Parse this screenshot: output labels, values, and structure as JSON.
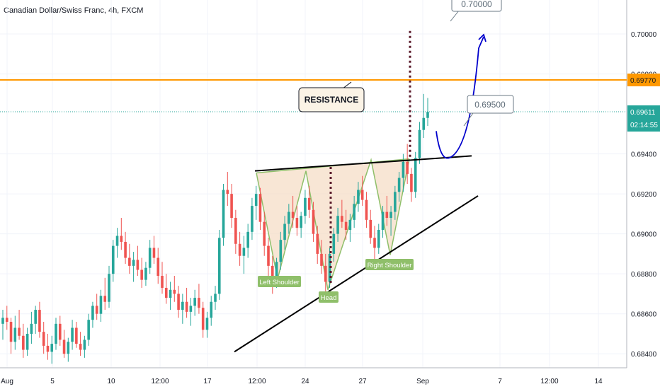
{
  "header": {
    "title": "Canadian Dollar/Swiss Franc, 4h, FXCM"
  },
  "chart_data": {
    "type": "candlestick",
    "symbol": "CADCHF",
    "timeframe": "4h",
    "y_axis": {
      "ticks": [
        "0.70000",
        "0.69800",
        "0.69400",
        "0.69200",
        "0.69000",
        "0.68800",
        "0.68600",
        "0.68400"
      ],
      "range": [
        0.6833,
        0.7017
      ]
    },
    "x_axis": {
      "ticks": [
        "Aug",
        "5",
        "10",
        "12:00",
        "17",
        "12:00",
        "24",
        "27",
        "Sep",
        "7",
        "12:00",
        "14"
      ]
    },
    "price_labels": {
      "resistance_level": "0.69770",
      "last_price": "0.69611",
      "countdown": "02:14:55"
    },
    "resistance_level": 0.6977,
    "last_price": 0.69611,
    "neckline": [
      [
        0.69315,
        0.6939
      ]
    ],
    "support_trend": [
      0.6841,
      0.6919
    ],
    "candles": [
      [
        0.6855,
        0.6862,
        0.6847,
        0.6858
      ],
      [
        0.6858,
        0.6864,
        0.6852,
        0.6856
      ],
      [
        0.6856,
        0.6858,
        0.684,
        0.6846
      ],
      [
        0.6846,
        0.6859,
        0.6842,
        0.6853
      ],
      [
        0.6853,
        0.6862,
        0.6847,
        0.6849
      ],
      [
        0.6849,
        0.6855,
        0.6838,
        0.6842
      ],
      [
        0.6842,
        0.6853,
        0.6839,
        0.685
      ],
      [
        0.685,
        0.6861,
        0.6845,
        0.6855
      ],
      [
        0.6855,
        0.6864,
        0.685,
        0.6862
      ],
      [
        0.6862,
        0.6866,
        0.6848,
        0.6851
      ],
      [
        0.6851,
        0.6856,
        0.684,
        0.6844
      ],
      [
        0.6844,
        0.685,
        0.6837,
        0.6841
      ],
      [
        0.6841,
        0.6849,
        0.6835,
        0.6845
      ],
      [
        0.6845,
        0.6858,
        0.6842,
        0.6855
      ],
      [
        0.6855,
        0.6859,
        0.6844,
        0.6847
      ],
      [
        0.6847,
        0.6852,
        0.6838,
        0.684
      ],
      [
        0.684,
        0.6848,
        0.6836,
        0.6846
      ],
      [
        0.6846,
        0.6857,
        0.6842,
        0.6853
      ],
      [
        0.6853,
        0.6856,
        0.6843,
        0.6845
      ],
      [
        0.6845,
        0.6851,
        0.6839,
        0.6842
      ],
      [
        0.6842,
        0.6849,
        0.6838,
        0.6847
      ],
      [
        0.6847,
        0.686,
        0.6844,
        0.6857
      ],
      [
        0.6857,
        0.6866,
        0.6853,
        0.6864
      ],
      [
        0.6864,
        0.687,
        0.6857,
        0.686
      ],
      [
        0.686,
        0.6872,
        0.6856,
        0.6869
      ],
      [
        0.6869,
        0.6878,
        0.6862,
        0.6866
      ],
      [
        0.6866,
        0.6884,
        0.6863,
        0.688
      ],
      [
        0.688,
        0.6897,
        0.6876,
        0.6894
      ],
      [
        0.6894,
        0.6903,
        0.6888,
        0.6899
      ],
      [
        0.6899,
        0.6908,
        0.6892,
        0.6896
      ],
      [
        0.6896,
        0.6901,
        0.6885,
        0.6888
      ],
      [
        0.6888,
        0.6895,
        0.688,
        0.6884
      ],
      [
        0.6884,
        0.6891,
        0.6876,
        0.6887
      ],
      [
        0.6887,
        0.6894,
        0.6879,
        0.6882
      ],
      [
        0.6882,
        0.6888,
        0.6873,
        0.6877
      ],
      [
        0.6877,
        0.6886,
        0.6874,
        0.6883
      ],
      [
        0.6883,
        0.6897,
        0.688,
        0.6893
      ],
      [
        0.6893,
        0.6899,
        0.6885,
        0.6888
      ],
      [
        0.6888,
        0.6893,
        0.6875,
        0.6879
      ],
      [
        0.6879,
        0.6886,
        0.687,
        0.6873
      ],
      [
        0.6873,
        0.688,
        0.6865,
        0.6868
      ],
      [
        0.6868,
        0.6876,
        0.6862,
        0.6872
      ],
      [
        0.6872,
        0.6879,
        0.6866,
        0.687
      ],
      [
        0.687,
        0.6874,
        0.6858,
        0.6862
      ],
      [
        0.6862,
        0.687,
        0.6855,
        0.6866
      ],
      [
        0.6866,
        0.6873,
        0.6858,
        0.6861
      ],
      [
        0.6861,
        0.6868,
        0.6854,
        0.6864
      ],
      [
        0.6864,
        0.6872,
        0.6859,
        0.6868
      ],
      [
        0.6868,
        0.6875,
        0.686,
        0.6863
      ],
      [
        0.6863,
        0.6866,
        0.6848,
        0.6852
      ],
      [
        0.6852,
        0.6861,
        0.6848,
        0.6858
      ],
      [
        0.6858,
        0.6869,
        0.6854,
        0.6866
      ],
      [
        0.6866,
        0.6874,
        0.6862,
        0.687
      ],
      [
        0.687,
        0.6902,
        0.6867,
        0.6898
      ],
      [
        0.6898,
        0.6925,
        0.6894,
        0.6922
      ],
      [
        0.6922,
        0.6931,
        0.6914,
        0.692
      ],
      [
        0.692,
        0.6925,
        0.6903,
        0.6908
      ],
      [
        0.6908,
        0.6912,
        0.689,
        0.6895
      ],
      [
        0.6895,
        0.6901,
        0.6884,
        0.6889
      ],
      [
        0.6889,
        0.6899,
        0.688,
        0.6893
      ],
      [
        0.6893,
        0.6905,
        0.6888,
        0.6901
      ],
      [
        0.6901,
        0.6918,
        0.6897,
        0.6914
      ],
      [
        0.6914,
        0.6924,
        0.6907,
        0.692
      ],
      [
        0.692,
        0.6923,
        0.6902,
        0.6906
      ],
      [
        0.6906,
        0.6911,
        0.6889,
        0.6894
      ],
      [
        0.6894,
        0.6898,
        0.6878,
        0.6884
      ],
      [
        0.6884,
        0.6889,
        0.687,
        0.6876
      ],
      [
        0.6876,
        0.6888,
        0.6873,
        0.6886
      ],
      [
        0.6886,
        0.6901,
        0.6882,
        0.6897
      ],
      [
        0.6897,
        0.6909,
        0.6892,
        0.6905
      ],
      [
        0.6905,
        0.6915,
        0.69,
        0.6911
      ],
      [
        0.6911,
        0.6919,
        0.6903,
        0.6908
      ],
      [
        0.6908,
        0.6914,
        0.6899,
        0.6903
      ],
      [
        0.6903,
        0.6911,
        0.6898,
        0.6909
      ],
      [
        0.6909,
        0.6922,
        0.6905,
        0.6918
      ],
      [
        0.6918,
        0.6924,
        0.6908,
        0.6912
      ],
      [
        0.6912,
        0.6916,
        0.6896,
        0.69
      ],
      [
        0.69,
        0.6904,
        0.6885,
        0.689
      ],
      [
        0.689,
        0.6897,
        0.688,
        0.6884
      ],
      [
        0.6884,
        0.689,
        0.6871,
        0.6876
      ],
      [
        0.6876,
        0.6893,
        0.6873,
        0.689
      ],
      [
        0.689,
        0.6903,
        0.6886,
        0.69
      ],
      [
        0.69,
        0.6913,
        0.6896,
        0.6909
      ],
      [
        0.6909,
        0.6917,
        0.6903,
        0.6906
      ],
      [
        0.6906,
        0.6912,
        0.6897,
        0.6902
      ],
      [
        0.6902,
        0.691,
        0.6896,
        0.6907
      ],
      [
        0.6907,
        0.6919,
        0.6903,
        0.6915
      ],
      [
        0.6915,
        0.6926,
        0.6911,
        0.6922
      ],
      [
        0.6922,
        0.6929,
        0.6914,
        0.6917
      ],
      [
        0.6917,
        0.6921,
        0.6903,
        0.6907
      ],
      [
        0.6907,
        0.6912,
        0.6895,
        0.6898
      ],
      [
        0.6898,
        0.6904,
        0.6887,
        0.6893
      ],
      [
        0.6893,
        0.6905,
        0.689,
        0.6902
      ],
      [
        0.6902,
        0.6914,
        0.6898,
        0.6911
      ],
      [
        0.6911,
        0.6919,
        0.6904,
        0.6908
      ],
      [
        0.6908,
        0.6914,
        0.6899,
        0.6911
      ],
      [
        0.6911,
        0.6924,
        0.6907,
        0.6921
      ],
      [
        0.6921,
        0.6931,
        0.6916,
        0.6928
      ],
      [
        0.6928,
        0.694,
        0.6921,
        0.6936
      ],
      [
        0.6936,
        0.6945,
        0.6925,
        0.693
      ],
      [
        0.693,
        0.6933,
        0.6916,
        0.6921
      ],
      [
        0.6921,
        0.6941,
        0.6918,
        0.6938
      ],
      [
        0.6938,
        0.6956,
        0.6935,
        0.6952
      ],
      [
        0.6952,
        0.697,
        0.6948,
        0.6958
      ],
      [
        0.6958,
        0.6968,
        0.6954,
        0.6961
      ]
    ],
    "annotations": [
      {
        "text": "RESISTANCE",
        "kind": "callout"
      },
      {
        "text": "0.70000",
        "kind": "target-label"
      },
      {
        "text": "0.69500",
        "kind": "target-label"
      },
      {
        "text": "Left Shoulder",
        "kind": "pattern-label"
      },
      {
        "text": "Head",
        "kind": "pattern-label"
      },
      {
        "text": "Right Shoulder",
        "kind": "pattern-label"
      }
    ],
    "colors": {
      "up": "#26a69a",
      "down": "#ef5350",
      "resistance": "#ff9800",
      "projection": "#0000cc",
      "pattern_fill": "#f5dcc3",
      "pattern_stroke": "#8fbf6a",
      "label_green": "#8fbf6a",
      "last_price": "#26a69a",
      "dotted": "#5a1a2a"
    }
  }
}
